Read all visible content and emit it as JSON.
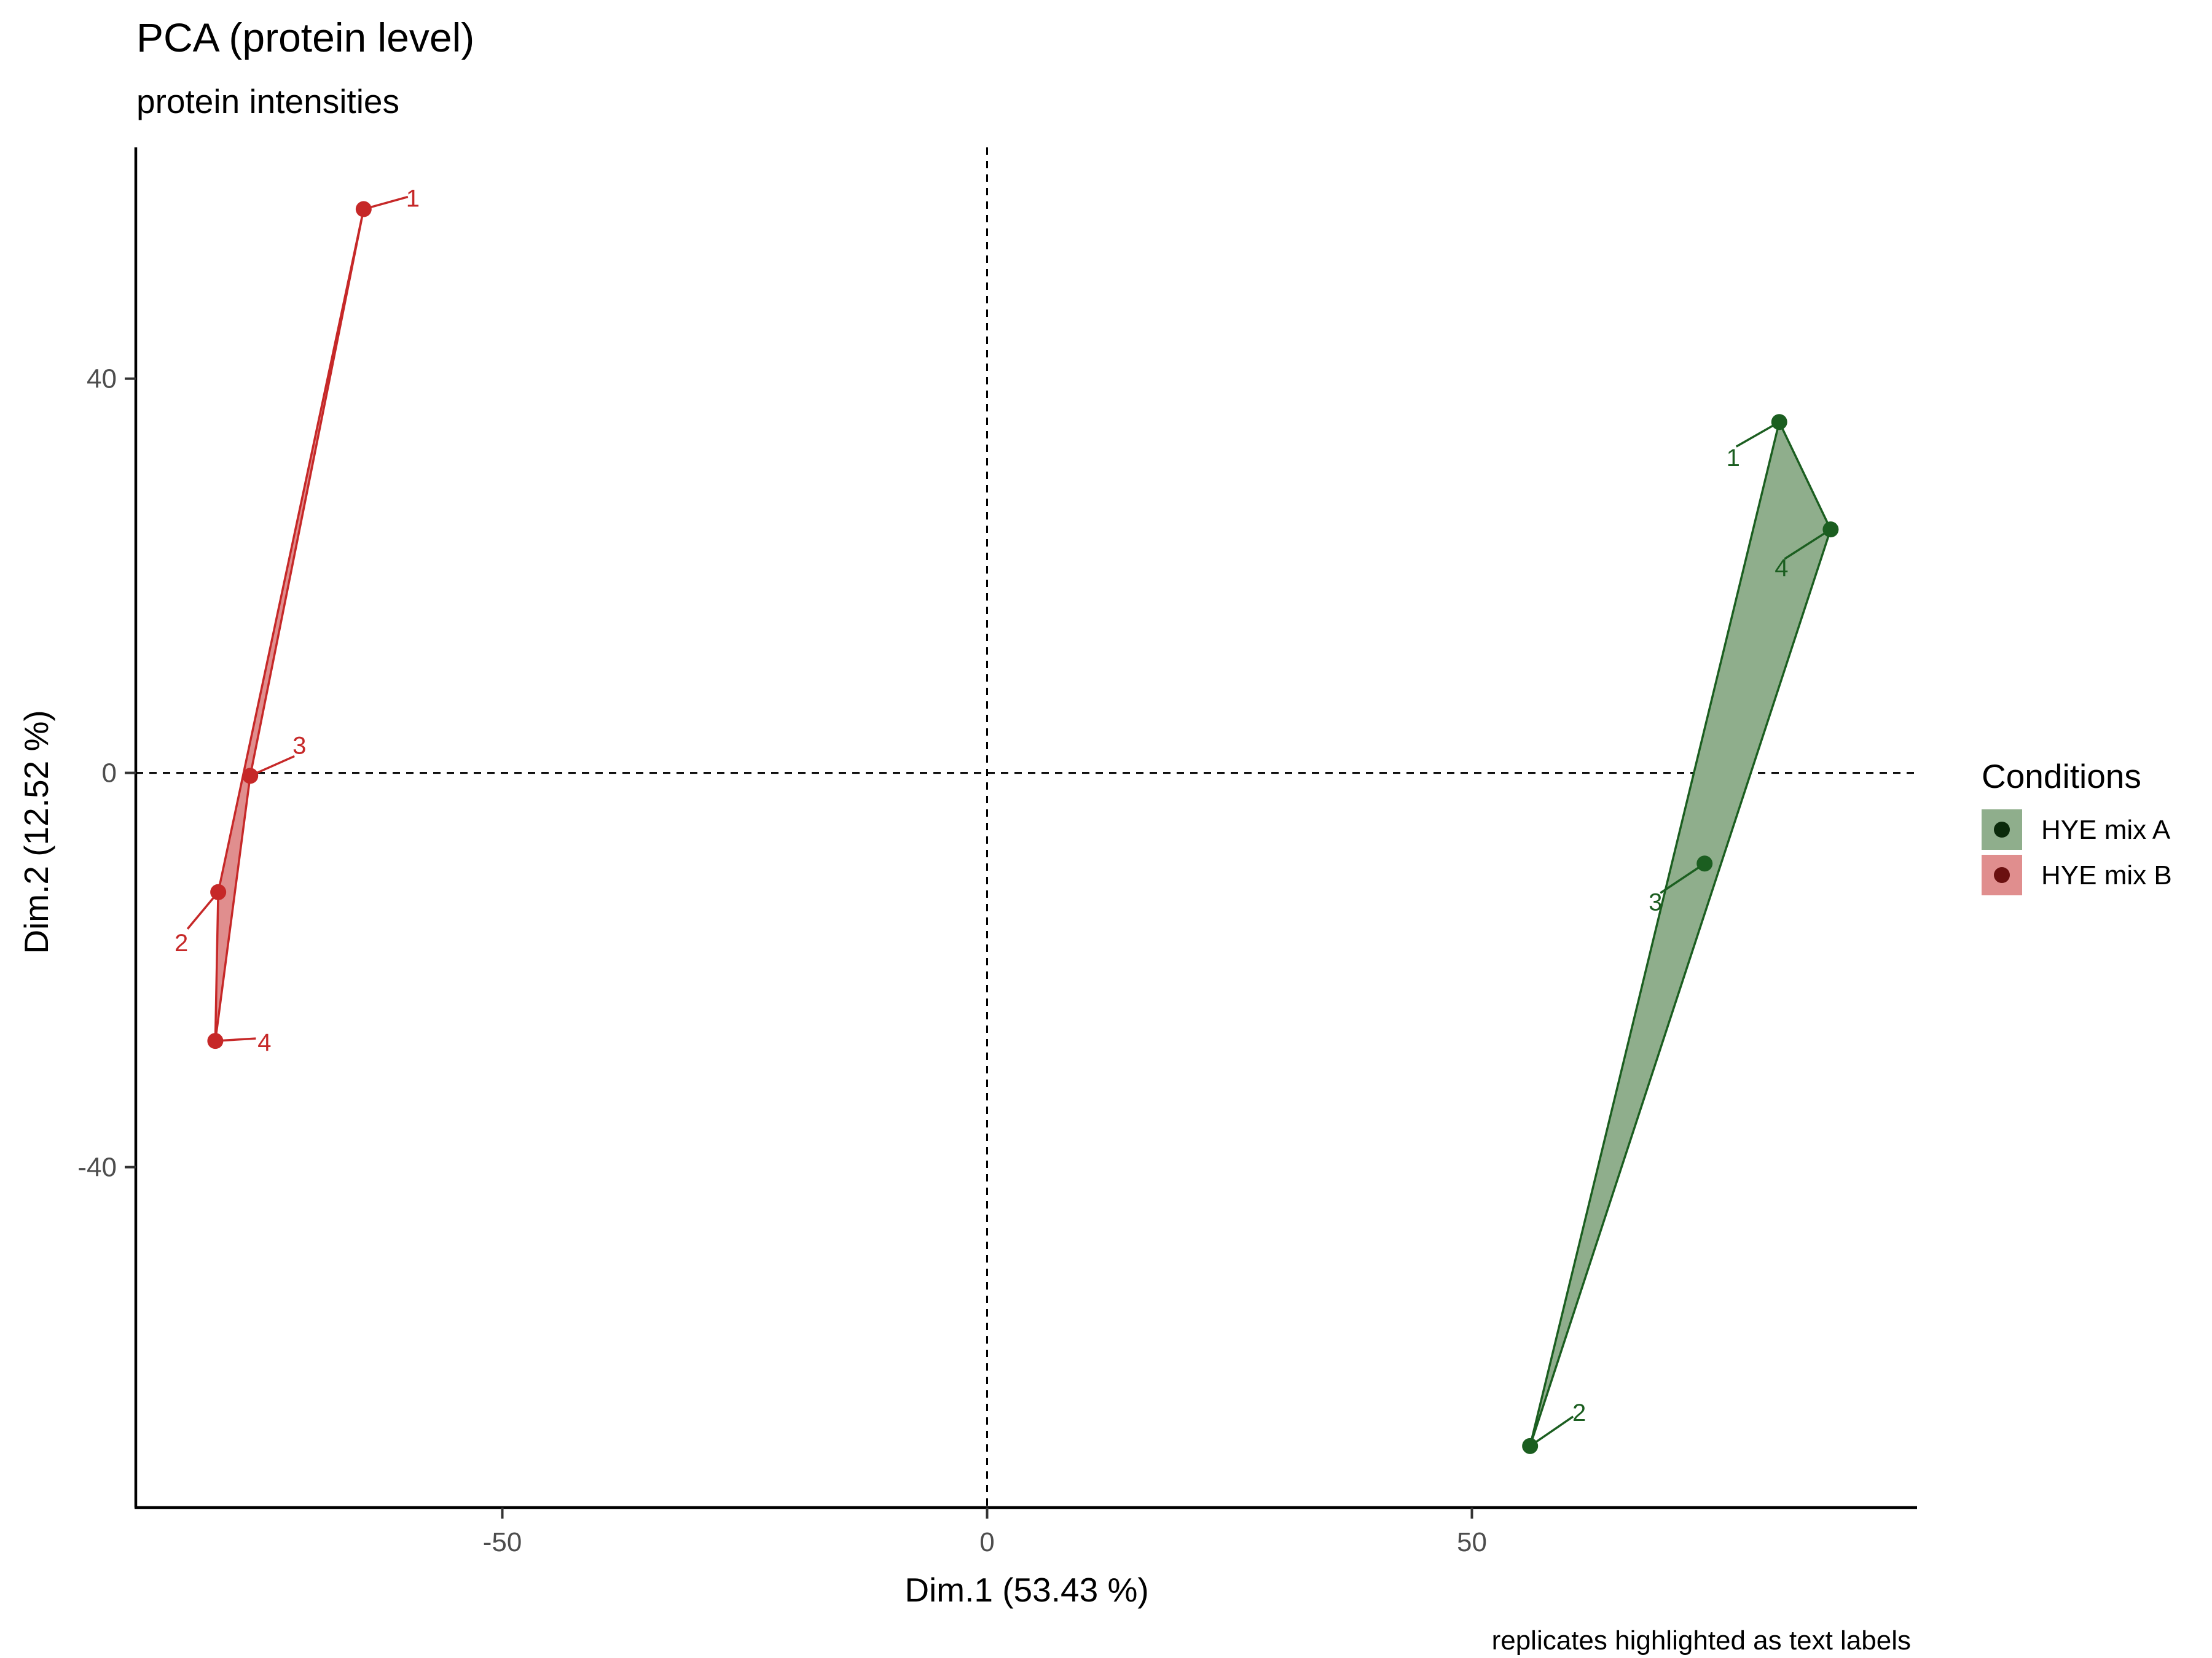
{
  "title": "PCA (protein level)",
  "subtitle": "protein intensities",
  "caption": "replicates highlighted as text labels",
  "chart_data": {
    "type": "scatter",
    "title": "PCA (protein level)",
    "subtitle": "protein intensities",
    "xlabel": "Dim.1 (53.43 %)",
    "ylabel": "Dim.2 (12.52 %)",
    "xlim": [
      -87,
      95
    ],
    "ylim": [
      -74,
      64
    ],
    "x_ticks": [
      -50,
      0,
      50
    ],
    "y_ticks": [
      -40,
      0,
      40
    ],
    "reference_lines": {
      "x": 0,
      "y": 0,
      "style": "dashed"
    },
    "grid": false,
    "legend": {
      "title": "Conditions",
      "position": "right"
    },
    "series": [
      {
        "name": "HYE mix A",
        "color": "#1b5e20",
        "fill": "#8fae8c",
        "point_fill": "#0b2a0b",
        "hull": [
          1,
          4,
          2
        ],
        "points": [
          {
            "label": "1",
            "x": 81.7,
            "y": 35.6
          },
          {
            "label": "2",
            "x": 56.0,
            "y": -68.3
          },
          {
            "label": "3",
            "x": 74.0,
            "y": -9.2
          },
          {
            "label": "4",
            "x": 87.0,
            "y": 24.7
          }
        ]
      },
      {
        "name": "HYE mix B",
        "color": "#c62828",
        "fill": "#e08e8e",
        "point_fill": "#6b1010",
        "hull": [
          1,
          3,
          4,
          2
        ],
        "points": [
          {
            "label": "1",
            "x": -64.3,
            "y": 57.2
          },
          {
            "label": "2",
            "x": -79.3,
            "y": -12.1
          },
          {
            "label": "3",
            "x": -76.0,
            "y": -0.3
          },
          {
            "label": "4",
            "x": -79.6,
            "y": -27.2
          }
        ]
      }
    ]
  }
}
